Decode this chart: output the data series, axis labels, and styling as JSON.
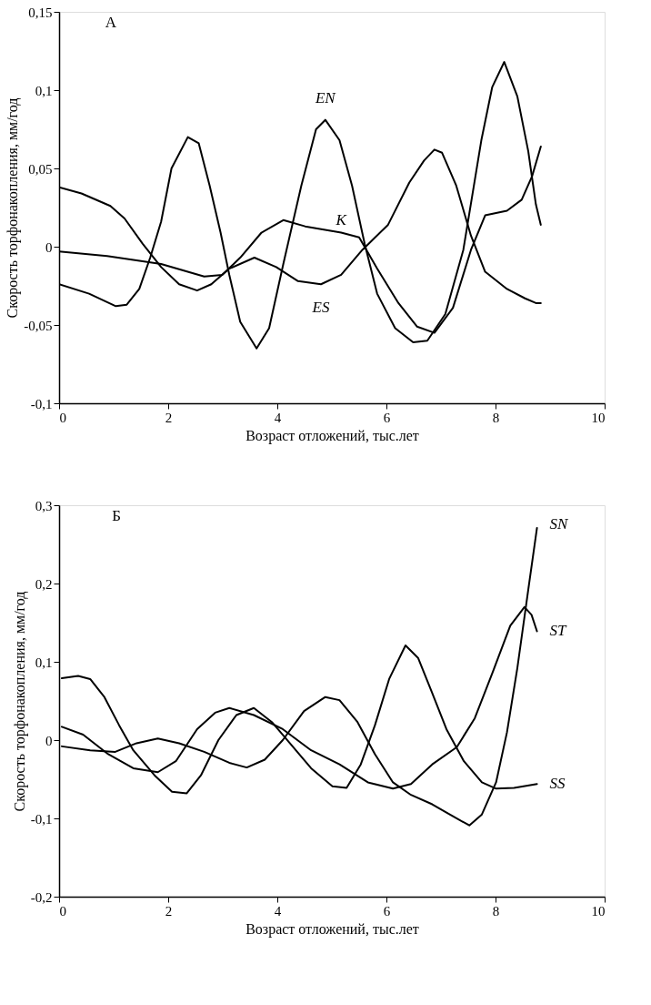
{
  "chart_data": [
    {
      "type": "line",
      "title": "А",
      "xlabel": "Возраст отложений, тыс.лет",
      "ylabel": "Скорость торфонакопления, мм/год",
      "xlim": [
        0,
        10
      ],
      "xticks": [
        0,
        2,
        4,
        6,
        8,
        10
      ],
      "ylim": [
        -0.1,
        0.15
      ],
      "yticks": [
        {
          "value": -0.1,
          "label": "-0,1"
        },
        {
          "value": -0.05,
          "label": "-0,05"
        },
        0,
        {
          "value": 0.05,
          "label": "0,05"
        },
        {
          "value": 0.1,
          "label": "0,1"
        },
        {
          "value": 0.15,
          "label": "0,15"
        }
      ],
      "grid": false,
      "legend": false,
      "marker": "none",
      "line_style": "solid",
      "series": [
        {
          "name": "EN",
          "color": "#000000",
          "x": [
            0,
            0.55,
            1.04,
            1.24,
            1.47,
            1.67,
            1.87,
            2.06,
            2.36,
            2.56,
            2.76,
            2.96,
            3.12,
            3.32,
            3.62,
            3.85,
            4.11,
            4.44,
            4.71,
            4.88,
            5.14,
            5.37,
            5.6,
            5.83,
            6.16,
            6.49,
            6.75,
            7.08,
            7.41,
            7.74,
            7.94,
            8.16,
            8.4,
            8.6,
            8.74,
            8.83
          ],
          "values": [
            -0.024,
            -0.03,
            -0.038,
            -0.037,
            -0.027,
            -0.007,
            0.016,
            0.05,
            0.07,
            0.066,
            0.039,
            0.009,
            -0.018,
            -0.048,
            -0.065,
            -0.052,
            -0.011,
            0.039,
            0.075,
            0.081,
            0.068,
            0.039,
            0.002,
            -0.03,
            -0.052,
            -0.061,
            -0.06,
            -0.043,
            -0.002,
            0.068,
            0.102,
            0.118,
            0.096,
            0.061,
            0.027,
            0.014
          ]
        },
        {
          "name": "ES",
          "color": "#000000",
          "x": [
            0,
            0.41,
            0.94,
            1.2,
            1.53,
            1.87,
            2.2,
            2.53,
            2.79,
            3.12,
            3.58,
            3.98,
            4.38,
            4.8,
            5.17,
            5.56,
            6.03,
            6.42,
            6.69,
            6.88,
            7.02,
            7.28,
            7.55,
            7.81,
            8.21,
            8.54,
            8.74,
            8.83
          ],
          "values": [
            0.038,
            0.034,
            0.026,
            0.018,
            0.002,
            -0.013,
            -0.024,
            -0.028,
            -0.024,
            -0.014,
            -0.007,
            -0.013,
            -0.022,
            -0.024,
            -0.018,
            -0.002,
            0.014,
            0.041,
            0.055,
            0.062,
            0.06,
            0.039,
            0.007,
            -0.016,
            -0.027,
            -0.033,
            -0.036,
            -0.036
          ]
        },
        {
          "name": "K",
          "color": "#000000",
          "x": [
            0,
            0.88,
            1.87,
            2.66,
            2.99,
            3.32,
            3.71,
            4.11,
            4.51,
            5.17,
            5.5,
            5.83,
            6.22,
            6.56,
            6.88,
            7.22,
            7.55,
            7.81,
            8.21,
            8.48,
            8.67,
            8.83
          ],
          "values": [
            -0.003,
            -0.006,
            -0.011,
            -0.019,
            -0.018,
            -0.007,
            0.009,
            0.017,
            0.013,
            0.009,
            0.006,
            -0.014,
            -0.036,
            -0.051,
            -0.055,
            -0.039,
            -0.002,
            0.02,
            0.023,
            0.03,
            0.045,
            0.064
          ]
        }
      ]
    },
    {
      "type": "line",
      "title": "Б",
      "xlabel": "Возраст отложений, тыс.лет",
      "ylabel": "Скорость торфонакопления, мм/год",
      "xlim": [
        0,
        10
      ],
      "xticks": [
        0,
        2,
        4,
        6,
        8,
        10
      ],
      "ylim": [
        -0.2,
        0.3
      ],
      "yticks": [
        {
          "value": -0.2,
          "label": "-0,2"
        },
        {
          "value": -0.1,
          "label": "-0,1"
        },
        0,
        {
          "value": 0.1,
          "label": "0,1"
        },
        {
          "value": 0.2,
          "label": "0,2"
        },
        {
          "value": 0.3,
          "label": "0,3"
        }
      ],
      "grid": false,
      "legend": false,
      "marker": "none",
      "line_style": "solid",
      "series": [
        {
          "name": "SS",
          "color": "#000000",
          "x": [
            0.05,
            0.35,
            0.57,
            0.83,
            1.1,
            1.36,
            1.75,
            2.07,
            2.34,
            2.6,
            2.92,
            3.25,
            3.57,
            3.9,
            4.23,
            4.62,
            5.01,
            5.27,
            5.53,
            5.79,
            6.05,
            6.35,
            6.58,
            6.84,
            7.1,
            7.42,
            7.75,
            8.01,
            8.34,
            8.76
          ],
          "values": [
            0.079,
            0.082,
            0.078,
            0.055,
            0.019,
            -0.013,
            -0.045,
            -0.066,
            -0.068,
            -0.045,
            0.0,
            0.032,
            0.041,
            0.023,
            -0.004,
            -0.036,
            -0.059,
            -0.061,
            -0.031,
            0.019,
            0.078,
            0.121,
            0.105,
            0.06,
            0.014,
            -0.027,
            -0.054,
            -0.062,
            -0.061,
            -0.056
          ]
        },
        {
          "name": "SN",
          "color": "#000000",
          "x": [
            0.05,
            0.57,
            1.03,
            1.42,
            1.81,
            2.2,
            2.66,
            3.12,
            3.44,
            3.77,
            4.1,
            4.49,
            4.88,
            5.14,
            5.47,
            5.79,
            6.12,
            6.45,
            6.84,
            7.16,
            7.52,
            7.75,
            8.01,
            8.21,
            8.4,
            8.6,
            8.76
          ],
          "values": [
            -0.008,
            -0.013,
            -0.015,
            -0.004,
            0.002,
            -0.004,
            -0.015,
            -0.029,
            -0.035,
            -0.025,
            0.0,
            0.037,
            0.055,
            0.051,
            0.023,
            -0.018,
            -0.054,
            -0.07,
            -0.082,
            -0.095,
            -0.109,
            -0.095,
            -0.054,
            0.01,
            0.092,
            0.192,
            0.271
          ]
        },
        {
          "name": "ST",
          "color": "#000000",
          "x": [
            0.05,
            0.44,
            0.9,
            1.36,
            1.81,
            2.14,
            2.53,
            2.86,
            3.12,
            3.57,
            4.1,
            4.62,
            5.14,
            5.66,
            6.12,
            6.45,
            6.84,
            7.29,
            7.62,
            7.95,
            8.27,
            8.53,
            8.66,
            8.76
          ],
          "values": [
            0.017,
            0.007,
            -0.018,
            -0.036,
            -0.041,
            -0.027,
            0.014,
            0.035,
            0.041,
            0.032,
            0.014,
            -0.013,
            -0.031,
            -0.054,
            -0.062,
            -0.056,
            -0.031,
            -0.009,
            0.028,
            0.087,
            0.146,
            0.17,
            0.16,
            0.139
          ]
        }
      ]
    }
  ]
}
